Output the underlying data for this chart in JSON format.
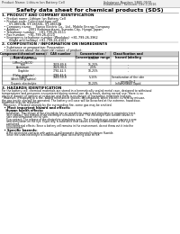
{
  "title": "Safety data sheet for chemical products (SDS)",
  "header_left": "Product Name: Lithium Ion Battery Cell",
  "header_right_line1": "Substance Number: SB05-05CP",
  "header_right_line2": "Established / Revision: Dec.1,2016",
  "section1_title": "1. PRODUCT AND COMPANY IDENTIFICATION",
  "section1_lines": [
    "  • Product name: Lithium Ion Battery Cell",
    "  • Product code: Cylindrical-type cell",
    "       SY-18650A, SY-18650L, SY-18650A",
    "  • Company name:    Sanyo Electric Co., Ltd., Mobile Energy Company",
    "  • Address:         2001 Kamimorikami, Sumoto-City, Hyogo, Japan",
    "  • Telephone number:   +81-799-26-4111",
    "  • Fax number:  +81-799-26-4120",
    "  • Emergency telephone number (Weekday) +81-799-26-3962",
    "       (Night and holiday) +81-799-26-4101"
  ],
  "section2_title": "2. COMPOSITION / INFORMATION ON INGREDIENTS",
  "section2_lines": [
    "  • Substance or preparation: Preparation",
    "  • Information about the chemical nature of product:"
  ],
  "table_col_labels": [
    "Component/chemical name /\nBrand name",
    "CAS number",
    "Concentration /\nConcentration range",
    "Classification and\nhazard labeling"
  ],
  "table_rows": [
    [
      "Lithium cobalt oxide\n(LiMnxCoxNiO2)",
      "-",
      "30-60%",
      "-"
    ],
    [
      "Iron",
      "7439-89-6",
      "15-25%",
      "-"
    ],
    [
      "Aluminum",
      "7429-90-5",
      "2-5%",
      "-"
    ],
    [
      "Graphite\n(Flake graphite)\n(Artificial graphite)",
      "7782-42-5\n7782-42-6",
      "10-25%",
      "-"
    ],
    [
      "Copper",
      "7440-50-8",
      "5-15%",
      "Sensitization of the skin\ngroup No.2"
    ],
    [
      "Organic electrolyte",
      "-",
      "10-20%",
      "Inflammable liquid"
    ]
  ],
  "section3_title": "3. HAZARDS IDENTIFICATION",
  "section3_para": [
    "For the battery cell, chemical materials are stored in a hermetically sealed metal case, designed to withstand",
    "temperatures and pressures encountered during normal use. As a result, during normal use, there is no",
    "physical danger of ignition or explosion and there is no danger of hazardous materials leakage.",
    "  However, if exposed to a fire, added mechanical shocks, decomposed, when electric current by misuse,",
    "the gas inside can/will be operated. The battery cell case will be breached at the extreme, hazardous",
    "materials may be released.",
    "  Moreover, if heated strongly by the surrounding fire, some gas may be emitted."
  ],
  "section3_bullet1": "  • Most important hazard and effects:",
  "section3_human_label": "    Human health effects:",
  "section3_human_lines": [
    "      Inhalation: The release of the electrolyte has an anesthetic action and stimulates in respiratory tract.",
    "      Skin contact: The release of the electrolyte stimulates a skin. The electrolyte skin contact causes a",
    "      sore and stimulation on the skin.",
    "      Eye contact: The release of the electrolyte stimulates eyes. The electrolyte eye contact causes a sore",
    "      and stimulation on the eye. Especially, a substance that causes a strong inflammation of the eye is",
    "      contained.",
    "      Environmental effects: Since a battery cell remains in the environment, do not throw out it into the",
    "      environment."
  ],
  "section3_specific": "  • Specific hazards:",
  "section3_specific_lines": [
    "      If the electrolyte contacts with water, it will generate detrimental hydrogen fluoride.",
    "      Since the used electrolyte is inflammable liquid, do not bring close to fire."
  ],
  "bg_color": "#ffffff",
  "header_bg": "#eeeeee",
  "table_header_bg": "#cccccc"
}
